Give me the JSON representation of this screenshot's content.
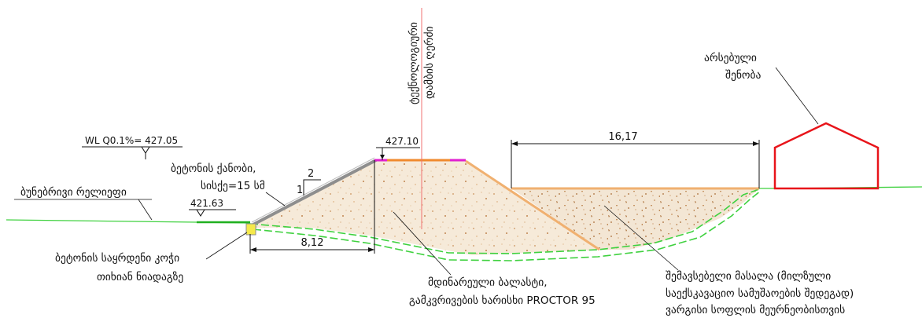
{
  "labels": {
    "wl_level": "WL Q0.1%= 427.05",
    "slope_protection_line1": "ბეტონის ქანობი,",
    "slope_protection_line2": "სისქე=15 სმ",
    "natural_relief": "ბუნებრივი რელიეფი",
    "toe_level": "421.63",
    "crest_level": "427.10",
    "slope_ratio_h": "2",
    "slope_ratio_v": "1",
    "toe_footing_line1": "ბეტონის საყრდენი კოჭი",
    "toe_footing_line2": "თიხიან ნიადაგზე",
    "base_width": "8,12",
    "axis_label_line1": "ტექნოლოგიური",
    "axis_label_line2": "დამბის ღერძი",
    "fill_width": "16,17",
    "existing_building_line1": "არსებული",
    "existing_building_line2": "შენობა",
    "ballast_line1": "მდინარეული ბალასტი,",
    "ballast_line2": "გამკვრივების ხარისხი PROCTOR 95",
    "backfill_line1": "შემავსებელი მასალა (მილზული",
    "backfill_line2": "საექსკავაციო სამუშაოების შედეგად)",
    "backfill_line3": "ვარგისი სოფლის მეურნეობისთვის"
  },
  "colors": {
    "ground_line": "#3fd13f",
    "building": "#e8141a",
    "crest_orange": "#f08a2e",
    "crest_magenta": "#e020d0",
    "slope_orange": "#f0b070",
    "slope_concrete": "#8e8e8e",
    "axis_line": "#f07070",
    "ballast_fill": "#f3e3d0",
    "backfill_fill": "#efe0cc",
    "toe_yellow": "#f5e94a"
  }
}
